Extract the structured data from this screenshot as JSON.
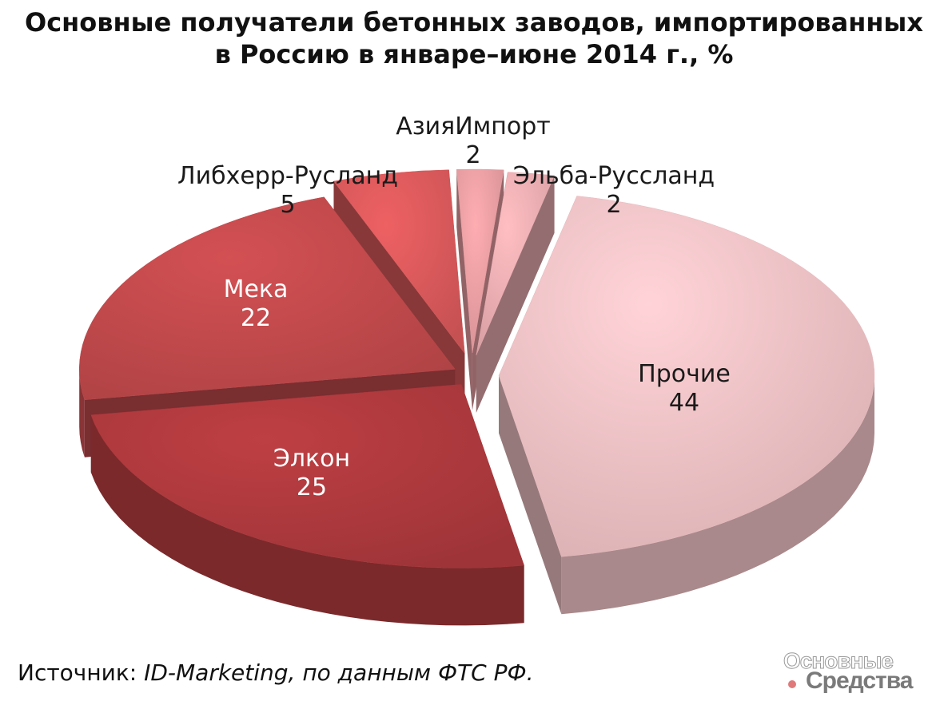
{
  "title": {
    "line1": "Основные получатели бетонных заводов, импортированных",
    "line2": "в Россию в январе–июне 2014 г., %"
  },
  "chart_data": {
    "type": "pie",
    "title": "Основные получатели бетонных заводов, импортированных в Россию в январе–июне 2014 г., %",
    "three_d": true,
    "exploded": true,
    "slices": [
      {
        "label": "Прочие",
        "value": 44,
        "color": "#f2c3c7"
      },
      {
        "label": "Элкон",
        "value": 25,
        "color": "#b03a3e"
      },
      {
        "label": "Мека",
        "value": 22,
        "color": "#c34a4d"
      },
      {
        "label": "Либхерр-Русланд",
        "value": 5,
        "color": "#dc5a5c"
      },
      {
        "label": "АзияИмпорт",
        "value": 2,
        "color": "#eba0a4"
      },
      {
        "label": "Эльба-Руссланд",
        "value": 2,
        "color": "#eeb0b4"
      }
    ]
  },
  "source": {
    "prefix": "Источник: ",
    "text": "ID-Marketing, по данным ФТС РФ."
  },
  "logo": {
    "line1": "Основные",
    "line2": "Средства"
  }
}
